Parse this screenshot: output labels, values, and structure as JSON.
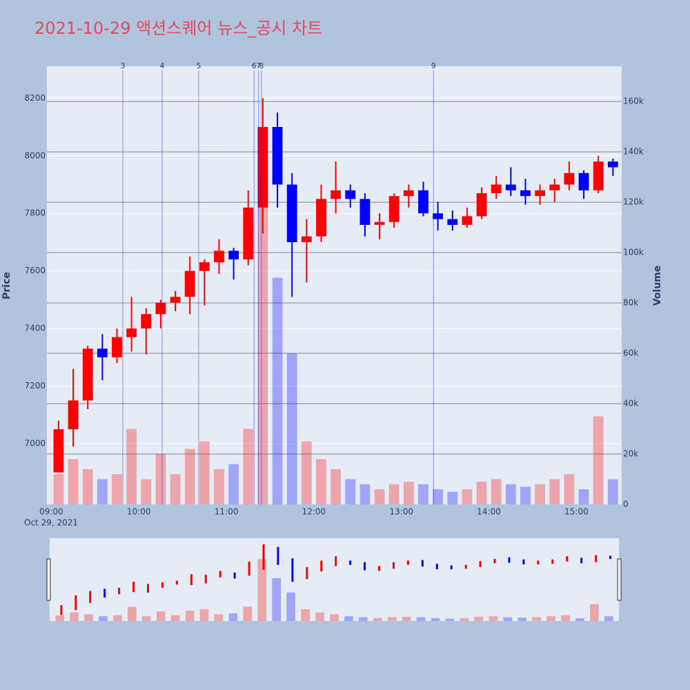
{
  "chart_data": {
    "type": "candlestick",
    "title": "2021-10-29 액션스퀘어 뉴스_공시 차트",
    "date_label": "Oct 29, 2021",
    "y_label": "Price",
    "y2_label": "Volume",
    "increasing_color": "#ff0000",
    "decreasing_color": "#0000ff",
    "x": [
      "09:00",
      "09:10",
      "09:20",
      "09:30",
      "09:40",
      "09:50",
      "10:00",
      "10:10",
      "10:20",
      "10:30",
      "10:40",
      "10:50",
      "11:00",
      "11:10",
      "11:20",
      "11:30",
      "11:40",
      "11:50",
      "12:00",
      "12:10",
      "12:20",
      "12:30",
      "12:40",
      "12:50",
      "13:00",
      "13:10",
      "13:20",
      "13:30",
      "13:40",
      "13:50",
      "14:00",
      "14:10",
      "14:20",
      "14:30",
      "14:40",
      "14:50",
      "15:00",
      "15:10",
      "15:20"
    ],
    "open": [
      6900,
      7050,
      7150,
      7330,
      7300,
      7370,
      7400,
      7450,
      7490,
      7510,
      7600,
      7630,
      7670,
      7640,
      7820,
      8100,
      7900,
      7700,
      7720,
      7850,
      7880,
      7850,
      7760,
      7770,
      7860,
      7880,
      7800,
      7780,
      7760,
      7790,
      7870,
      7900,
      7880,
      7860,
      7880,
      7900,
      7940,
      7880,
      7980
    ],
    "high": [
      7080,
      7260,
      7340,
      7380,
      7400,
      7510,
      7470,
      7500,
      7530,
      7650,
      7640,
      7710,
      7680,
      7880,
      8200,
      8150,
      7940,
      7780,
      7900,
      7980,
      7900,
      7870,
      7800,
      7870,
      7900,
      7910,
      7840,
      7810,
      7820,
      7890,
      7930,
      7960,
      7920,
      7900,
      7920,
      7980,
      7950,
      8000,
      7990
    ],
    "low": [
      6900,
      6990,
      7120,
      7220,
      7280,
      7320,
      7310,
      7400,
      7460,
      7450,
      7480,
      7590,
      7570,
      7620,
      7730,
      7820,
      7510,
      7560,
      7700,
      7800,
      7820,
      7720,
      7710,
      7750,
      7820,
      7790,
      7740,
      7740,
      7750,
      7780,
      7850,
      7860,
      7830,
      7830,
      7840,
      7880,
      7850,
      7870,
      7930
    ],
    "close": [
      7050,
      7150,
      7330,
      7300,
      7370,
      7400,
      7450,
      7490,
      7510,
      7600,
      7630,
      7670,
      7640,
      7820,
      8100,
      7900,
      7700,
      7720,
      7850,
      7880,
      7850,
      7760,
      7770,
      7860,
      7880,
      7800,
      7780,
      7760,
      7790,
      7870,
      7900,
      7880,
      7860,
      7880,
      7900,
      7940,
      7880,
      7980,
      7960
    ],
    "volume": [
      12000,
      18000,
      14000,
      10000,
      12000,
      30000,
      10000,
      20000,
      12000,
      22000,
      25000,
      14000,
      16000,
      30000,
      130000,
      90000,
      60000,
      25000,
      18000,
      14000,
      10000,
      8000,
      6000,
      8000,
      9000,
      8000,
      6000,
      5000,
      6000,
      9000,
      10000,
      8000,
      7000,
      8000,
      10000,
      12000,
      6000,
      35000,
      10000
    ],
    "news": [
      {
        "label": "3",
        "x": "09:49"
      },
      {
        "label": "4",
        "x": "10:16"
      },
      {
        "label": "5",
        "x": "10:41"
      },
      {
        "label": "6",
        "x": "11:19"
      },
      {
        "label": "7",
        "x": "11:22"
      },
      {
        "label": "8",
        "x": "11:24"
      },
      {
        "label": "9",
        "x": "13:22"
      }
    ],
    "xlim": [
      "08:57",
      "15:31"
    ],
    "xticks": [
      "09:00",
      "10:00",
      "11:00",
      "12:00",
      "13:00",
      "14:00",
      "15:00"
    ],
    "ylim": [
      6789,
      8311
    ],
    "yticks": [
      7000,
      7200,
      7400,
      7600,
      7800,
      8000,
      8200
    ],
    "y2lim": [
      0,
      174000
    ],
    "y2ticks": [
      {
        "value": 0,
        "label": "0"
      },
      {
        "value": 20000,
        "label": "20k"
      },
      {
        "value": 40000,
        "label": "40k"
      },
      {
        "value": 60000,
        "label": "60k"
      },
      {
        "value": 80000,
        "label": "80k"
      },
      {
        "value": 100000,
        "label": "100k"
      },
      {
        "value": 120000,
        "label": "120k"
      },
      {
        "value": 140000,
        "label": "140k"
      },
      {
        "value": 160000,
        "label": "160k"
      }
    ]
  }
}
